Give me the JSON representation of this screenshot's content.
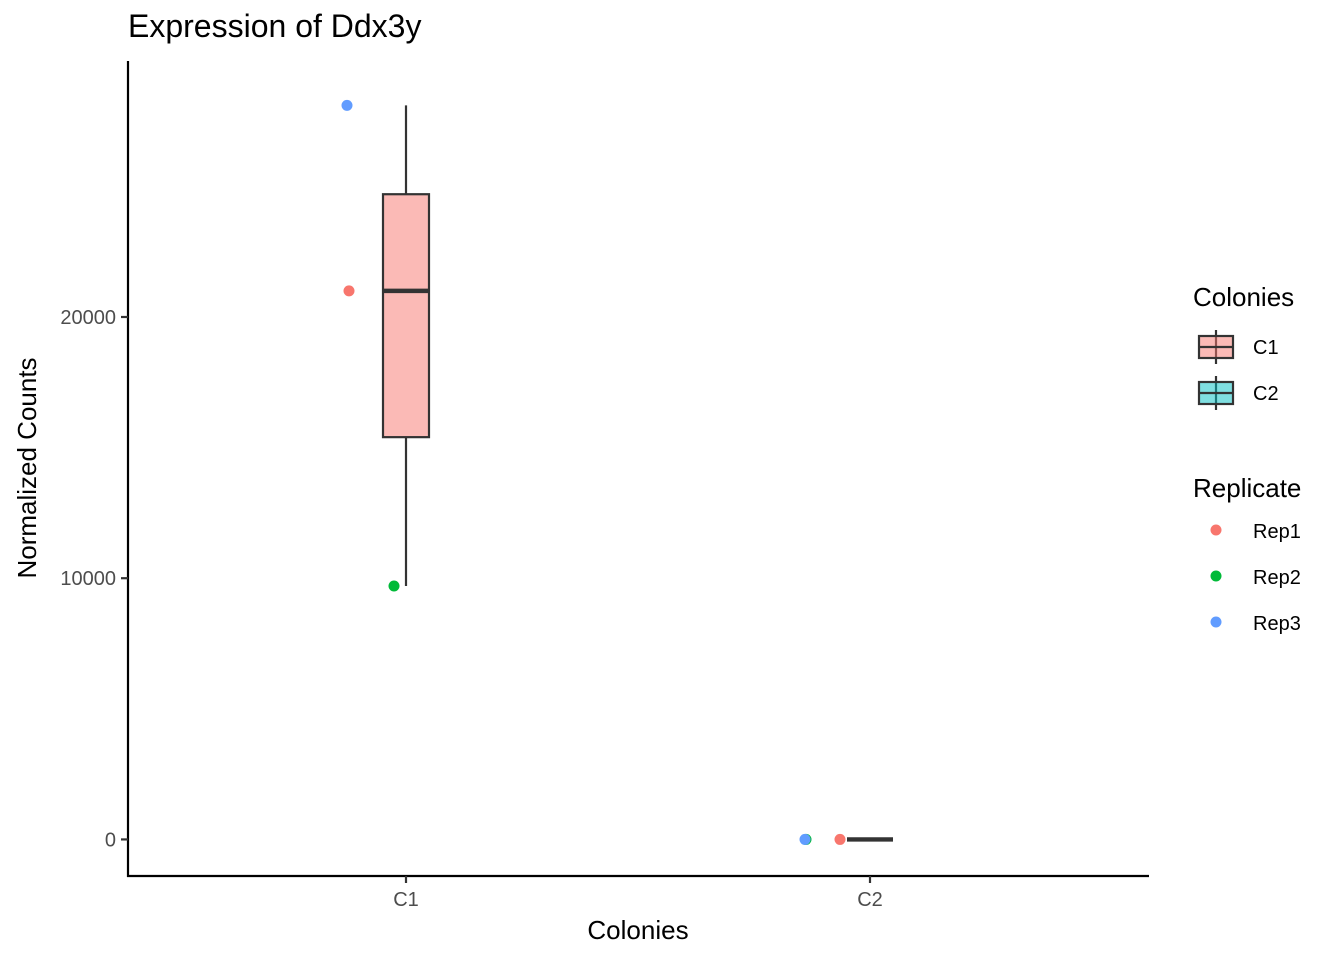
{
  "chart_data": {
    "type": "boxplot",
    "title": "Expression of Ddx3y",
    "xlabel": "Colonies",
    "ylabel": "Normalized Counts",
    "categories": [
      "C1",
      "C2"
    ],
    "yticks": [
      0,
      10000,
      20000
    ],
    "ylim": [
      -1400,
      29800
    ],
    "boxes": [
      {
        "category": "C1",
        "min": 9700,
        "q1": 15400,
        "median": 21000,
        "q3": 24700,
        "max": 28100,
        "fill": "#F8766D"
      },
      {
        "category": "C2",
        "min": 0,
        "q1": 0,
        "median": 0,
        "q3": 0,
        "max": 0,
        "fill": "#00BFC4"
      }
    ],
    "points": [
      {
        "category": "C1",
        "replicate": "Rep1",
        "value": 21000
      },
      {
        "category": "C1",
        "replicate": "Rep2",
        "value": 9700
      },
      {
        "category": "C1",
        "replicate": "Rep3",
        "value": 28100
      },
      {
        "category": "C2",
        "replicate": "Rep1",
        "value": 0
      },
      {
        "category": "C2",
        "replicate": "Rep2",
        "value": 0
      },
      {
        "category": "C2",
        "replicate": "Rep3",
        "value": 0
      }
    ],
    "legends": [
      {
        "title": "Colonies",
        "kind": "box",
        "items": [
          {
            "label": "C1",
            "color": "#F8766D"
          },
          {
            "label": "C2",
            "color": "#00BFC4"
          }
        ]
      },
      {
        "title": "Replicate",
        "kind": "point",
        "items": [
          {
            "label": "Rep1",
            "color": "#F8766D"
          },
          {
            "label": "Rep2",
            "color": "#00BA38"
          },
          {
            "label": "Rep3",
            "color": "#619CFF"
          }
        ]
      }
    ],
    "legend_position": "right",
    "grid": false
  }
}
